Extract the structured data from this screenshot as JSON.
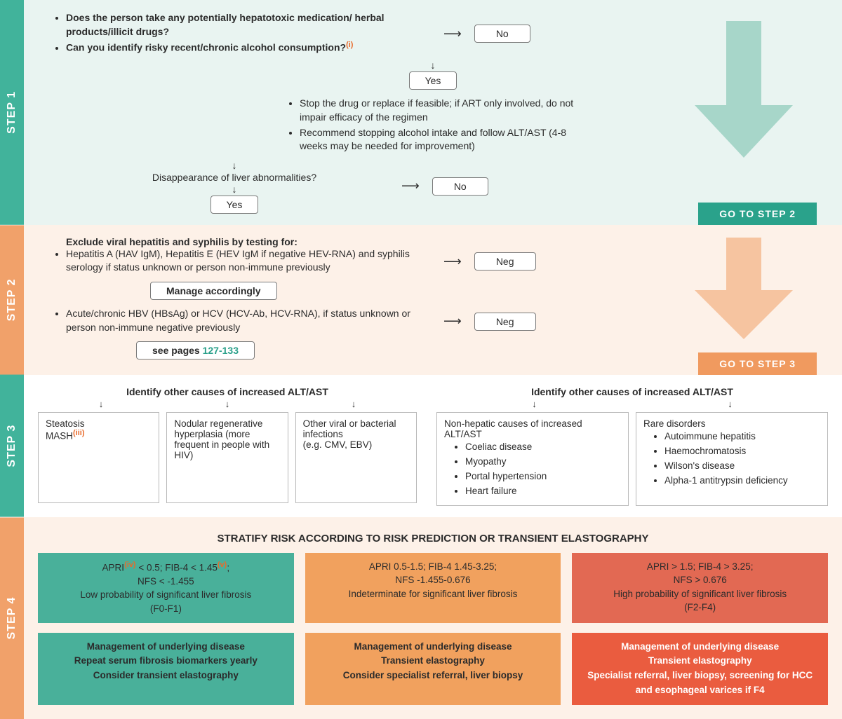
{
  "colors": {
    "step1_bg": "#e9f4f1",
    "step1_label": "#41b39b",
    "step1_arrow": "#a7d6c9",
    "step1_goto": "#2aa28b",
    "step2_bg": "#fdf1e8",
    "step2_label": "#f1a16a",
    "step2_arrow": "#f6c4a0",
    "step2_goto": "#f09a5f",
    "step3_bg": "#ffffff",
    "step3_label": "#41b39b",
    "step4_bg": "#fdf1e8",
    "step4_label": "#f1a16a",
    "risk_low": "#49b09a",
    "risk_mid": "#f1a15e",
    "risk_high": "#e26953",
    "mgmt_low": "#49b09a",
    "mgmt_mid": "#f1a15e",
    "mgmt_high": "#ea5c3f",
    "box_border": "#b8b8b8",
    "text": "#2b2b2b"
  },
  "step_labels": {
    "s1": "STEP 1",
    "s2": "STEP 2",
    "s3": "STEP 3",
    "s4": "STEP 4"
  },
  "step1": {
    "q1": "Does the person take any potentially hepatotoxic medication/ herbal products/illicit drugs?",
    "q2_pre": "Can you identify risky recent/chronic alcohol consumption?",
    "q2_sup": "(i)",
    "no": "No",
    "yes": "Yes",
    "advice1": "Stop the drug or replace if feasible; if ART only involved, do not impair efficacy of the regimen",
    "advice2": "Recommend stopping alcohol intake and follow ALT/AST (4-8 weeks may be needed for improvement)",
    "q3": "Disappearance of liver abnormalities?",
    "yes2": "Yes",
    "no2": "No",
    "goto": "GO TO STEP 2"
  },
  "step2": {
    "title": "Exclude viral hepatitis and syphilis by testing for:",
    "b1": "Hepatitis A (HAV IgM), Hepatitis E (HEV IgM if negative HEV-RNA) and syphilis serology if status unknown or person non-immune previously",
    "neg": "Neg",
    "manage": "Manage accordingly",
    "b2": "Acute/chronic HBV (HBsAg) or HCV (HCV-Ab, HCV-RNA), if status unknown or person non-immune negative previously",
    "seepages_pre": "see pages ",
    "seepages_link": "127-133",
    "goto": "GO TO STEP 3"
  },
  "step3": {
    "left_header": "Identify other causes of increased ALT/AST",
    "right_header": "Identify other causes of increased ALT/AST",
    "left_cards": [
      {
        "lines": [
          "Steatosis",
          "MASH"
        ],
        "sup": "(iii)"
      },
      {
        "lines": [
          "Nodular regenerative hyperplasia (more frequent in people with HIV)"
        ]
      },
      {
        "lines": [
          "Other viral or bacterial infections",
          "(e.g. CMV, EBV)"
        ]
      }
    ],
    "right_cards": [
      {
        "title": "Non-hepatic causes of increased ALT/AST",
        "items": [
          "Coeliac disease",
          "Myopathy",
          "Portal hypertension",
          "Heart failure"
        ]
      },
      {
        "title": "Rare disorders",
        "items": [
          "Autoimmune hepatitis",
          "Haemochromatosis",
          "Wilson's disease",
          "Alpha-1 antitrypsin deficiency"
        ]
      }
    ]
  },
  "step4": {
    "title": "STRATIFY RISK ACCORDING TO RISK PREDICTION OR TRANSIENT ELASTOGRAPHY",
    "risk": [
      {
        "line1_a": "APRI",
        "sup1": "(iv)",
        "line1_b": " < 0.5; FIB-4 < 1.45",
        "sup2": "(v)",
        "line1_c": ";",
        "line2": "NFS < -1.455",
        "line3": "Low probability of significant liver fibrosis",
        "line4": "(F0-F1)"
      },
      {
        "line1": "APRI 0.5-1.5; FIB-4 1.45-3.25;",
        "line2": "NFS -1.455-0.676",
        "line3": "Indeterminate for significant liver fibrosis"
      },
      {
        "line1": "APRI > 1.5; FIB-4 > 3.25;",
        "line2": "NFS > 0.676",
        "line3": "High probability of significant liver fibrosis",
        "line4": "(F2-F4)"
      }
    ],
    "mgmt": [
      "Management of underlying disease\nRepeat serum fibrosis biomarkers yearly\nConsider transient elastography",
      "Management of underlying disease\nTransient elastography\nConsider specialist referral, liver biopsy",
      "Management of underlying disease\nTransient elastography\nSpecialist referral, liver biopsy, screening for HCC and esophageal varices if F4"
    ]
  }
}
